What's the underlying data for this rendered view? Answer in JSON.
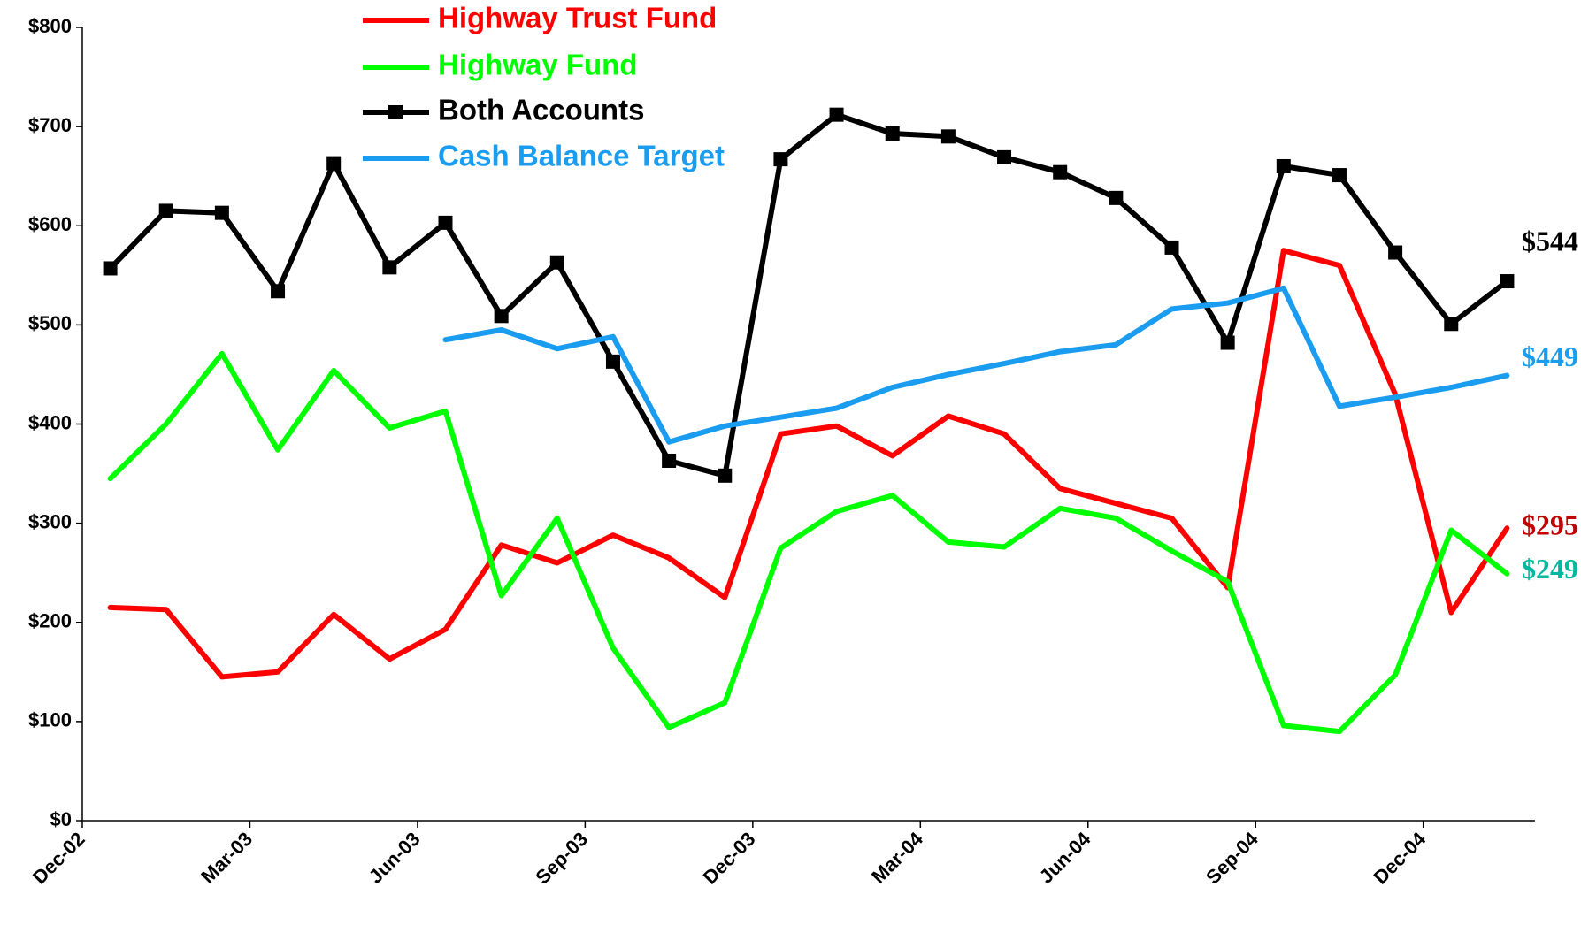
{
  "chart_data": {
    "type": "line",
    "categories": [
      "Dec-02",
      "Jan-03",
      "Feb-03",
      "Mar-03",
      "Apr-03",
      "May-03",
      "Jun-03",
      "Jul-03",
      "Aug-03",
      "Sep-03",
      "Oct-03",
      "Nov-03",
      "Dec-03",
      "Jan-04",
      "Feb-04",
      "Mar-04",
      "Apr-04",
      "May-04",
      "Jun-04",
      "Jul-04",
      "Aug-04",
      "Sep-04",
      "Oct-04",
      "Nov-04",
      "Dec-04",
      "Jan-05"
    ],
    "xtick_every": 3,
    "ylim": [
      0,
      800
    ],
    "yticks": [
      {
        "value": 0,
        "label": "$0"
      },
      {
        "value": 100,
        "label": "$100"
      },
      {
        "value": 200,
        "label": "$200"
      },
      {
        "value": 300,
        "label": "$300"
      },
      {
        "value": 400,
        "label": "$400"
      },
      {
        "value": 500,
        "label": "$500"
      },
      {
        "value": 600,
        "label": "$600"
      },
      {
        "value": 700,
        "label": "$700"
      },
      {
        "value": 800,
        "label": "$800"
      }
    ],
    "series": [
      {
        "name": "Highway Trust Fund",
        "color": "#ff0000",
        "label_color": "#c00000",
        "marker": false,
        "values": [
          215,
          213,
          145,
          150,
          208,
          163,
          193,
          278,
          260,
          288,
          265,
          225,
          390,
          398,
          368,
          408,
          390,
          335,
          320,
          305,
          235,
          575,
          560,
          430,
          210,
          295
        ],
        "value_labels": [
          null,
          null,
          null,
          null,
          null,
          null,
          null,
          null,
          null,
          null,
          null,
          null,
          null,
          null,
          null,
          null,
          null,
          null,
          null,
          null,
          null,
          null,
          null,
          null,
          null,
          "$295"
        ]
      },
      {
        "name": "Highway Fund",
        "color": "#00ff00",
        "label_color": "#00b8a0",
        "marker": false,
        "values": [
          345,
          400,
          471,
          374,
          454,
          396,
          413,
          227,
          305,
          174,
          94,
          119,
          275,
          312,
          328,
          281,
          276,
          315,
          305,
          272,
          241,
          96,
          90,
          147,
          293,
          249
        ],
        "value_labels": [
          null,
          null,
          null,
          null,
          null,
          null,
          null,
          null,
          null,
          null,
          null,
          null,
          null,
          null,
          null,
          null,
          null,
          null,
          null,
          null,
          null,
          null,
          null,
          null,
          null,
          "$249"
        ]
      },
      {
        "name": "Both Accounts",
        "color": "#000000",
        "label_color": "#000000",
        "marker": true,
        "values": [
          557,
          615,
          613,
          534,
          663,
          558,
          603,
          509,
          563,
          463,
          363,
          348,
          667,
          712,
          693,
          690,
          669,
          654,
          628,
          578,
          482,
          660,
          651,
          573,
          501,
          544
        ],
        "value_labels": [
          null,
          null,
          null,
          null,
          null,
          null,
          null,
          null,
          null,
          null,
          null,
          null,
          null,
          null,
          null,
          null,
          null,
          null,
          null,
          null,
          null,
          null,
          null,
          null,
          null,
          "$544"
        ]
      },
      {
        "name": "Cash Balance Target",
        "color": "#1a9cf0",
        "label_color": "#1a9cf0",
        "marker": false,
        "values": [
          null,
          null,
          null,
          null,
          null,
          null,
          485,
          495,
          476,
          488,
          382,
          398,
          407,
          416,
          437,
          450,
          461,
          473,
          480,
          516,
          522,
          537,
          418,
          427,
          437,
          449
        ],
        "value_labels": [
          null,
          null,
          null,
          null,
          null,
          null,
          null,
          null,
          null,
          null,
          null,
          null,
          null,
          null,
          null,
          null,
          null,
          null,
          null,
          null,
          null,
          null,
          null,
          null,
          null,
          "$449"
        ]
      }
    ]
  }
}
